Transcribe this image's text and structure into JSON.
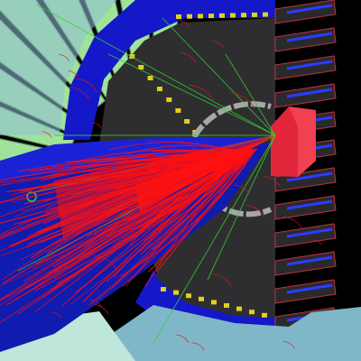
{
  "scene": {
    "background": "#000000",
    "colors": {
      "calorimeter_fan": "#9fe39a",
      "calorimeter_edge": "#5a8b5a",
      "light_blue_shell": "#8fc0d8",
      "blue_ring": "#1518c8",
      "yellow_tiles": "#e0d020",
      "dark_barrel": "#2e2e30",
      "inner_ring": "#a7a7a7",
      "red_block": "#e2263a",
      "red_tracks": "#ff1010",
      "green_tracks": "#33d033",
      "right_plates": "#2a2a2c"
    },
    "right_plate_count": 12,
    "track_seed": 7
  }
}
